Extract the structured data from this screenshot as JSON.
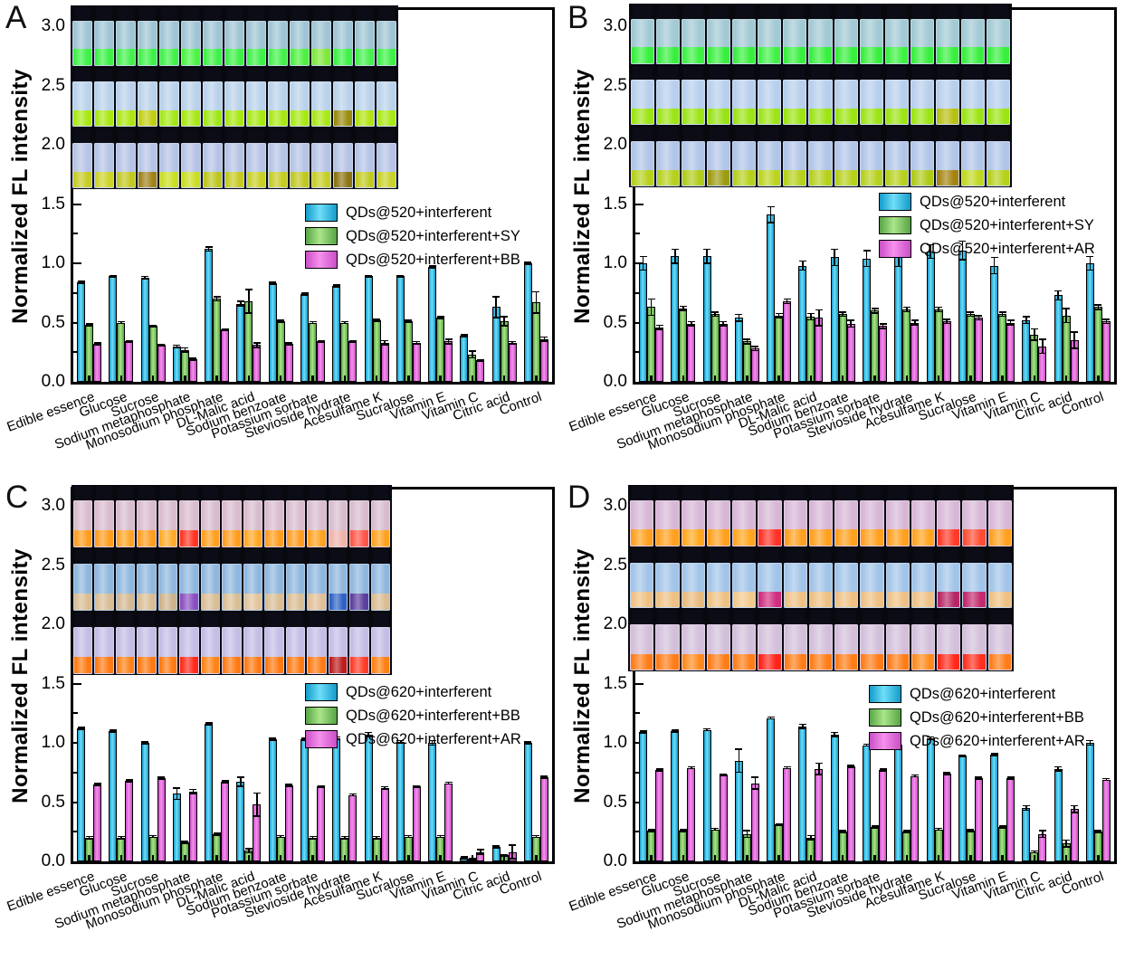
{
  "figure": {
    "background": "#ffffff",
    "ylabel": "Normalized FL intensity",
    "series_palette": {
      "cyan": "#2bb8e4",
      "green": "#84cf65",
      "magenta": "#e76bdc"
    }
  },
  "chart_data": [
    {
      "panel": "A",
      "type": "bar",
      "ylabel": "Normalized FL intensity",
      "ylim": [
        0.0,
        3.2
      ],
      "yticks_major": [
        0.0,
        0.5,
        1.0,
        1.5,
        2.0,
        2.5,
        3.0
      ],
      "yticks_minor_step": 0.25,
      "grid": false,
      "legend_position": "right-middle",
      "categories": [
        "Edible essence",
        "Glucose",
        "Sucrose",
        "Sodium metaphosphate",
        "Monosodium phosphate",
        "DL-Malic acid",
        "Sodium benzoate",
        "Potassium sorbate",
        "Stevioside hydrate",
        "Acesulfame K",
        "Sucralose",
        "Vitamin E",
        "Vitamin C",
        "Citric acid",
        "Control"
      ],
      "series": [
        {
          "name": "QDs@520+interferent",
          "color_key": "cyan",
          "values": [
            0.84,
            0.89,
            0.88,
            0.3,
            1.12,
            0.66,
            0.83,
            0.74,
            0.81,
            0.89,
            0.89,
            0.97,
            0.39,
            0.63,
            1.0
          ],
          "errors": [
            0.01,
            0.01,
            0.01,
            0.01,
            0.02,
            0.02,
            0.01,
            0.01,
            0.01,
            0.01,
            0.01,
            0.01,
            0.01,
            0.09,
            0.01
          ]
        },
        {
          "name": "QDs@520+interferent+SY",
          "color_key": "green",
          "values": [
            0.48,
            0.5,
            0.47,
            0.27,
            0.7,
            0.68,
            0.51,
            0.5,
            0.5,
            0.52,
            0.51,
            0.54,
            0.23,
            0.51,
            0.67
          ],
          "errors": [
            0.01,
            0.01,
            0.01,
            0.02,
            0.02,
            0.1,
            0.01,
            0.01,
            0.01,
            0.01,
            0.01,
            0.01,
            0.03,
            0.04,
            0.09
          ]
        },
        {
          "name": "QDs@520+interferent+BB",
          "color_key": "magenta",
          "values": [
            0.32,
            0.34,
            0.31,
            0.19,
            0.44,
            0.31,
            0.32,
            0.34,
            0.34,
            0.33,
            0.33,
            0.34,
            0.18,
            0.33,
            0.36
          ],
          "errors": [
            0.01,
            0.01,
            0.01,
            0.01,
            0.01,
            0.02,
            0.01,
            0.01,
            0.01,
            0.02,
            0.01,
            0.02,
            0.01,
            0.01,
            0.02
          ]
        }
      ],
      "inset_photo": {
        "description": "three rows of 15 capped vials under UV light",
        "rows": [
          {
            "body": "#9fc4d3",
            "liquids": [
              "#3df146",
              "#3df146",
              "#44f14c",
              "#3df146",
              "#40f148",
              "#4af542",
              "#3df146",
              "#3df146",
              "#3df146",
              "#44f04a",
              "#4ef03e",
              "#7ee838",
              "#3df146",
              "#48f04e",
              "#3ef146"
            ]
          },
          {
            "body": "#b9d2ea",
            "liquids": [
              "#a8e812",
              "#a8e812",
              "#aee50f",
              "#c2ce10",
              "#a4e814",
              "#a8e812",
              "#a0e616",
              "#a8e812",
              "#a8e812",
              "#a8e812",
              "#a8e812",
              "#a8e812",
              "#9a8c0e",
              "#b2e212",
              "#a8e812"
            ]
          },
          {
            "body": "#b5c3e5",
            "liquids": [
              "#c6cc24",
              "#ccd428",
              "#c2c81e",
              "#a0821a",
              "#c8e020",
              "#cade22",
              "#bcc61c",
              "#c4ca20",
              "#c8d024",
              "#c4cc22",
              "#bfc81e",
              "#c6ce24",
              "#8c7412",
              "#c2ca20",
              "#c8d228"
            ]
          }
        ]
      }
    },
    {
      "panel": "B",
      "type": "bar",
      "ylabel": "Normalized FL intensity",
      "ylim": [
        0.0,
        3.2
      ],
      "yticks_major": [
        0.0,
        0.5,
        1.0,
        1.5,
        2.0,
        2.5,
        3.0
      ],
      "yticks_minor_step": 0.25,
      "grid": false,
      "legend_position": "right-middle",
      "categories": [
        "Edible essence",
        "Glucose",
        "Sucrose",
        "Sodium metaphosphate",
        "Monosodium phosphate",
        "DL-Malic acid",
        "Sodium benzoate",
        "Potassium sorbate",
        "Stevioside hydrate",
        "Acesulfame K",
        "Sucralose",
        "Vitamin E",
        "Vitamin C",
        "Citric acid",
        "Control"
      ],
      "series": [
        {
          "name": "QDs@520+interferent",
          "color_key": "cyan",
          "values": [
            1.0,
            1.06,
            1.06,
            0.54,
            1.41,
            0.98,
            1.05,
            1.04,
            1.05,
            1.1,
            1.11,
            0.98,
            0.52,
            0.73,
            1.0
          ],
          "errors": [
            0.06,
            0.06,
            0.06,
            0.03,
            0.07,
            0.04,
            0.07,
            0.07,
            0.08,
            0.06,
            0.08,
            0.07,
            0.03,
            0.04,
            0.06
          ]
        },
        {
          "name": "QDs@520+interferent+SY",
          "color_key": "green",
          "values": [
            0.63,
            0.62,
            0.57,
            0.34,
            0.56,
            0.55,
            0.57,
            0.6,
            0.61,
            0.61,
            0.57,
            0.57,
            0.4,
            0.56,
            0.63
          ],
          "errors": [
            0.07,
            0.02,
            0.02,
            0.02,
            0.02,
            0.03,
            0.02,
            0.02,
            0.02,
            0.02,
            0.02,
            0.02,
            0.05,
            0.06,
            0.02
          ]
        },
        {
          "name": "QDs@520+interferent+AR",
          "color_key": "magenta",
          "values": [
            0.46,
            0.49,
            0.49,
            0.28,
            0.68,
            0.54,
            0.49,
            0.47,
            0.5,
            0.51,
            0.54,
            0.5,
            0.3,
            0.35,
            0.51
          ],
          "errors": [
            0.02,
            0.02,
            0.02,
            0.02,
            0.02,
            0.07,
            0.03,
            0.02,
            0.02,
            0.02,
            0.02,
            0.02,
            0.06,
            0.07,
            0.02
          ]
        }
      ],
      "inset_photo": {
        "description": "three rows of 15 capped vials under UV light",
        "rows": [
          {
            "body": "#a2c9d4",
            "liquids": [
              "#38ef3e",
              "#38ef3e",
              "#3cf142",
              "#38ef3e",
              "#38ef3e",
              "#40f146",
              "#38ef3e",
              "#38ef3e",
              "#38ef3e",
              "#38ef3e",
              "#3cf142",
              "#38ef3e",
              "#38ef3e",
              "#38ef3e",
              "#38ef3e"
            ]
          },
          {
            "body": "#b7cfec",
            "liquids": [
              "#9ce414",
              "#9ce414",
              "#9ce414",
              "#98e216",
              "#9ce414",
              "#9ce414",
              "#9ce414",
              "#9ce414",
              "#9ce414",
              "#9ce414",
              "#9ce414",
              "#9ce414",
              "#b8c013",
              "#9ce414",
              "#9ce414"
            ]
          },
          {
            "body": "#b1c5e8",
            "liquids": [
              "#b6d01c",
              "#b6d01c",
              "#b0cc1a",
              "#9c9c12",
              "#b6d01c",
              "#bcd41e",
              "#b6d01c",
              "#b6d01c",
              "#b6d01c",
              "#b6d01c",
              "#b6d01c",
              "#b0ca18",
              "#a5830f",
              "#c0d820",
              "#b6d01c"
            ]
          }
        ]
      }
    },
    {
      "panel": "C",
      "type": "bar",
      "ylabel": "Normalized FL intensity",
      "ylim": [
        0.0,
        3.2
      ],
      "yticks_major": [
        0.0,
        0.5,
        1.0,
        1.5,
        2.0,
        2.5,
        3.0
      ],
      "yticks_minor_step": 0.25,
      "grid": false,
      "legend_position": "right-middle",
      "categories": [
        "Edible essence",
        "Glucose",
        "Sucrose",
        "Sodium metaphosphate",
        "Monosodium phosphate",
        "DL-Malic acid",
        "Sodium benzoate",
        "Potassium sorbate",
        "Stevioside hydrate",
        "Acesulfame K",
        "Sucralose",
        "Vitamin E",
        "Vitamin C",
        "Citric acid",
        "Control"
      ],
      "series": [
        {
          "name": "QDs@620+interferent",
          "color_key": "cyan",
          "values": [
            1.12,
            1.1,
            1.0,
            0.57,
            1.16,
            0.67,
            1.03,
            1.03,
            1.04,
            1.07,
            1.01,
            1.0,
            0.03,
            0.12,
            1.0
          ],
          "errors": [
            0.01,
            0.01,
            0.01,
            0.05,
            0.01,
            0.04,
            0.01,
            0.01,
            0.01,
            0.02,
            0.01,
            0.02,
            0.01,
            0.01,
            0.01
          ]
        },
        {
          "name": "QDs@620+interferent+BB",
          "color_key": "green",
          "values": [
            0.2,
            0.2,
            0.21,
            0.16,
            0.23,
            0.09,
            0.21,
            0.2,
            0.2,
            0.2,
            0.21,
            0.21,
            0.02,
            0.05,
            0.21
          ],
          "errors": [
            0.01,
            0.01,
            0.01,
            0.01,
            0.01,
            0.02,
            0.01,
            0.01,
            0.01,
            0.01,
            0.01,
            0.01,
            0.01,
            0.01,
            0.01
          ]
        },
        {
          "name": "QDs@620+interferent+AR",
          "color_key": "magenta",
          "values": [
            0.65,
            0.68,
            0.7,
            0.59,
            0.67,
            0.48,
            0.64,
            0.63,
            0.56,
            0.62,
            0.63,
            0.66,
            0.08,
            0.08,
            0.71
          ],
          "errors": [
            0.01,
            0.01,
            0.01,
            0.02,
            0.01,
            0.1,
            0.01,
            0.01,
            0.01,
            0.01,
            0.01,
            0.01,
            0.02,
            0.06,
            0.01
          ]
        }
      ],
      "inset_photo": {
        "description": "three rows of 15 capped vials under UV light",
        "rows": [
          {
            "body": "#d8bccd",
            "liquids": [
              "#ff9d1f",
              "#ff9d1f",
              "#ffa524",
              "#ff9d1f",
              "#ffab28",
              "#ff3624",
              "#ffa01f",
              "#ff9d1f",
              "#ffa724",
              "#ff9d1f",
              "#ff9d1f",
              "#ffa21f",
              "#efb3ab",
              "#ff564a",
              "#ffa21f"
            ]
          },
          {
            "body": "#8fb7de",
            "liquids": [
              "#d9bd94",
              "#d9bd94",
              "#d4b890",
              "#d9bd94",
              "#cdb28a",
              "#8a4fc2",
              "#d9bd94",
              "#d9bd94",
              "#e2c49c",
              "#d9bd94",
              "#d9bd94",
              "#e0be96",
              "#2f62c4",
              "#5d3f9e",
              "#d9bd94"
            ]
          },
          {
            "body": "#c4bde5",
            "liquids": [
              "#ff7a12",
              "#ff7a12",
              "#ff8316",
              "#ff7a12",
              "#ff7a12",
              "#ff2a1a",
              "#ff8316",
              "#ff7a12",
              "#ff7a12",
              "#ff7a12",
              "#ff7a12",
              "#ff7a12",
              "#bc1d1d",
              "#ff3c28",
              "#ff8012"
            ]
          }
        ]
      }
    },
    {
      "panel": "D",
      "type": "bar",
      "ylabel": "Normalized FL intensity",
      "ylim": [
        0.0,
        3.2
      ],
      "yticks_major": [
        0.0,
        0.5,
        1.0,
        1.5,
        2.0,
        2.5,
        3.0
      ],
      "yticks_minor_step": 0.25,
      "grid": false,
      "legend_position": "right-middle",
      "categories": [
        "Edible essence",
        "Glucose",
        "Sucrose",
        "Sodium metaphosphate",
        "Monosodium phosphate",
        "DL-Malic acid",
        "Sodium benzoate",
        "Potassium sorbate",
        "Stevioside hydrate",
        "Acesulfame K",
        "Sucralose",
        "Vitamin E",
        "Vitamin C",
        "Citric acid",
        "Control"
      ],
      "series": [
        {
          "name": "QDs@620+interferent",
          "color_key": "cyan",
          "values": [
            1.09,
            1.1,
            1.11,
            0.85,
            1.21,
            1.14,
            1.07,
            0.98,
            0.97,
            1.04,
            0.89,
            0.9,
            0.45,
            0.78,
            1.0
          ],
          "errors": [
            0.01,
            0.01,
            0.01,
            0.1,
            0.01,
            0.02,
            0.02,
            0.01,
            0.01,
            0.01,
            0.01,
            0.01,
            0.02,
            0.02,
            0.02
          ]
        },
        {
          "name": "QDs@620+interferent+BB",
          "color_key": "green",
          "values": [
            0.26,
            0.26,
            0.27,
            0.23,
            0.31,
            0.2,
            0.25,
            0.29,
            0.25,
            0.27,
            0.26,
            0.29,
            0.08,
            0.15,
            0.25
          ],
          "errors": [
            0.01,
            0.01,
            0.01,
            0.03,
            0.01,
            0.02,
            0.01,
            0.01,
            0.01,
            0.01,
            0.01,
            0.01,
            0.01,
            0.03,
            0.01
          ]
        },
        {
          "name": "QDs@620+interferent+AR",
          "color_key": "magenta",
          "values": [
            0.77,
            0.79,
            0.73,
            0.66,
            0.79,
            0.78,
            0.8,
            0.77,
            0.72,
            0.74,
            0.7,
            0.7,
            0.23,
            0.44,
            0.69
          ],
          "errors": [
            0.01,
            0.01,
            0.01,
            0.05,
            0.01,
            0.05,
            0.01,
            0.01,
            0.01,
            0.01,
            0.01,
            0.01,
            0.03,
            0.03,
            0.01
          ]
        }
      ],
      "inset_photo": {
        "description": "three rows of 15 capped vials under UV light",
        "rows": [
          {
            "body": "#d7b7d6",
            "liquids": [
              "#ffa01e",
              "#ffa01e",
              "#ffa81e",
              "#ffa01e",
              "#ffa61e",
              "#ff3325",
              "#ffa01e",
              "#ffa01e",
              "#ffa01e",
              "#ffa01e",
              "#ffa01e",
              "#ffa41e",
              "#ff3a28",
              "#ff4c33",
              "#ffa01e"
            ]
          },
          {
            "body": "#a2c4e8",
            "liquids": [
              "#eec083",
              "#eec083",
              "#e9ba7e",
              "#eec083",
              "#f2c98c",
              "#cf2f80",
              "#eec083",
              "#eec083",
              "#eec083",
              "#eec083",
              "#eec083",
              "#eec083",
              "#b62766",
              "#c32a6e",
              "#eec083"
            ]
          },
          {
            "body": "#d3bfda",
            "liquids": [
              "#ff7d18",
              "#ff7d18",
              "#ff8a1c",
              "#ff7d18",
              "#ff7d18",
              "#ff231a",
              "#ff7d18",
              "#ff7d18",
              "#ff7d18",
              "#ff7d18",
              "#ff7d18",
              "#ff8a1c",
              "#ff2a1c",
              "#ff2f1e",
              "#ff7d18"
            ]
          }
        ]
      }
    }
  ]
}
